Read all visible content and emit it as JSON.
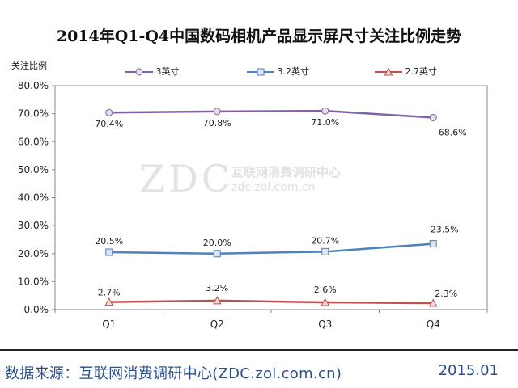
{
  "watermark": {
    "logo": "ZDC",
    "cn": "互联网消费调研中心",
    "url": "zdc.zol.com.cn"
  },
  "footer": {
    "source": "数据来源：互联网消费调研中心(ZDC.zol.com.cn)",
    "date": "2015.01"
  },
  "colors": {
    "series_3": "#8064a2",
    "series_32": "#4f81bd",
    "series_27": "#c0504d",
    "axis": "#888888",
    "grid": "#d9d9d9"
  },
  "chart_data": {
    "type": "line",
    "title": "2014年Q1-Q4中国数码相机产品显示屏尺寸关注比例走势",
    "ylabel": "关注比例",
    "xlabel": "",
    "categories": [
      "Q1",
      "Q2",
      "Q3",
      "Q4"
    ],
    "ylim": [
      0,
      80
    ],
    "yticks": [
      "0.0%",
      "10.0%",
      "20.0%",
      "30.0%",
      "40.0%",
      "50.0%",
      "60.0%",
      "70.0%",
      "80.0%"
    ],
    "grid": false,
    "legend_position": "top",
    "series": [
      {
        "name": "3英寸",
        "values": [
          70.4,
          70.8,
          71.0,
          68.6
        ],
        "labels": [
          "70.4%",
          "70.8%",
          "71.0%",
          "68.6%"
        ],
        "marker": "circle",
        "color": "#8064a2"
      },
      {
        "name": "3.2英寸",
        "values": [
          20.5,
          20.0,
          20.7,
          23.5
        ],
        "labels": [
          "20.5%",
          "20.0%",
          "20.7%",
          "23.5%"
        ],
        "marker": "square",
        "color": "#4f81bd"
      },
      {
        "name": "2.7英寸",
        "values": [
          2.7,
          3.2,
          2.6,
          2.3
        ],
        "labels": [
          "2.7%",
          "3.2%",
          "2.6%",
          "2.3%"
        ],
        "marker": "triangle",
        "color": "#c0504d"
      }
    ]
  }
}
